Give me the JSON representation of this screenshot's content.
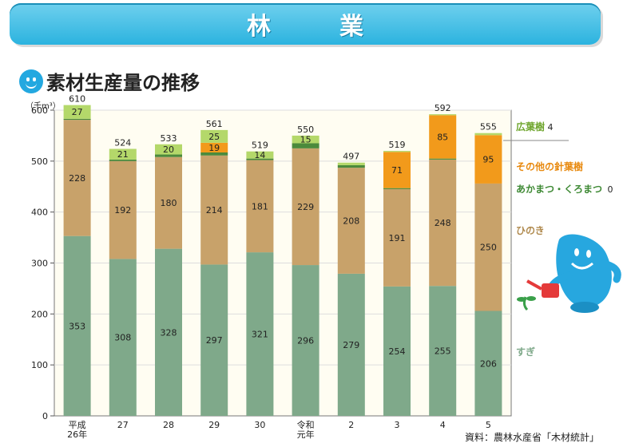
{
  "header": {
    "title": "林　業"
  },
  "chart_title": "素材生産量の推移",
  "source": "資料：農林水産省「木材統計」",
  "chart_data": {
    "type": "bar",
    "stacked": true,
    "ylabel": "（千m³）",
    "ylim": [
      0,
      600
    ],
    "yticks": [
      0,
      100,
      200,
      300,
      400,
      500,
      600
    ],
    "categories": [
      "平成\n26年",
      "27",
      "28",
      "29",
      "30",
      "令和\n元年",
      "2",
      "3",
      "4",
      "5"
    ],
    "totals": [
      610,
      524,
      533,
      561,
      519,
      550,
      497,
      519,
      592,
      555
    ],
    "series": [
      {
        "name": "すぎ",
        "color": "#7fa98a",
        "values": [
          353,
          308,
          328,
          297,
          321,
          296,
          279,
          254,
          255,
          206
        ],
        "labels": [
          "353",
          "308",
          "328",
          "297",
          "321",
          "296",
          "279",
          "254",
          "255",
          "206"
        ]
      },
      {
        "name": "ひのき",
        "color": "#c8a26a",
        "values": [
          228,
          192,
          180,
          214,
          181,
          229,
          208,
          191,
          248,
          250
        ],
        "labels": [
          "228",
          "192",
          "180",
          "214",
          "181",
          "229",
          "208",
          "191",
          "248",
          "250"
        ]
      },
      {
        "name": "あかまつ・くろまつ",
        "legend_value": "0",
        "color": "#4c8a3c",
        "values": [
          2,
          3,
          5,
          6,
          3,
          10,
          5,
          2,
          2,
          0
        ],
        "labels": [
          "",
          "",
          "",
          "",
          "",
          "",
          "",
          "",
          "",
          ""
        ]
      },
      {
        "name": "その他の針葉樹",
        "color": "#f29a1b",
        "values": [
          0,
          0,
          0,
          19,
          0,
          0,
          0,
          71,
          85,
          95
        ],
        "labels": [
          "",
          "",
          "",
          "19",
          "",
          "",
          "",
          "71",
          "85",
          "95"
        ]
      },
      {
        "name": "広葉樹",
        "legend_value": "4",
        "color": "#b4d86a",
        "values": [
          27,
          21,
          20,
          25,
          14,
          15,
          5,
          2,
          2,
          4
        ],
        "labels": [
          "27",
          "21",
          "20",
          "25",
          "14",
          "15",
          "",
          "",
          "",
          ""
        ]
      }
    ]
  }
}
